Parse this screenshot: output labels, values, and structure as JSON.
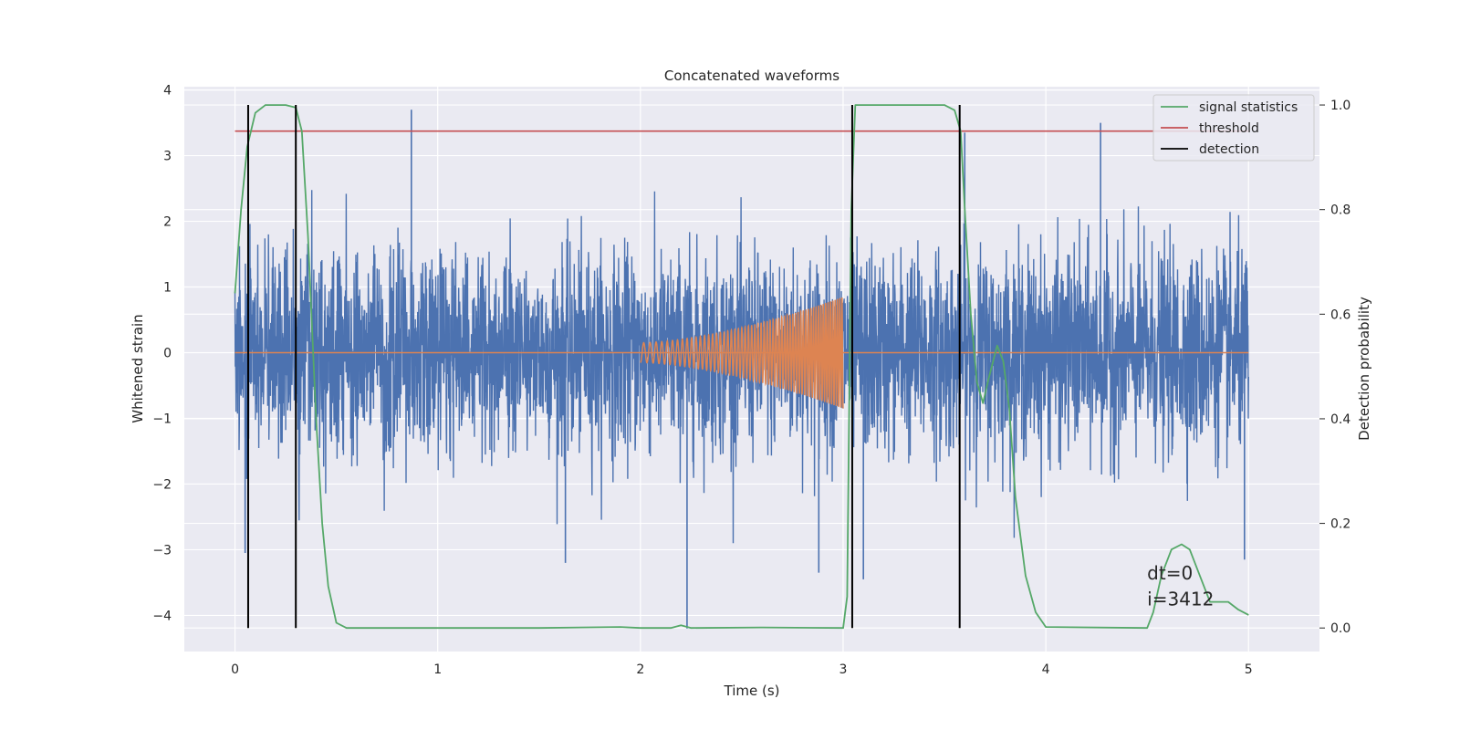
{
  "chart_data": {
    "type": "line",
    "title": "Concatenated waveforms",
    "xlabel": "Time (s)",
    "ylabel": "Whitened strain",
    "y2label": "Detection probability",
    "xlim": [
      -0.25,
      5.35
    ],
    "ylim": [
      -4.55,
      4.05
    ],
    "y2lim": [
      -0.045,
      1.035
    ],
    "xticks": [
      0,
      1,
      2,
      3,
      4,
      5
    ],
    "yticks": [
      -4,
      -3,
      -2,
      -1,
      0,
      1,
      2,
      3,
      4
    ],
    "y2ticks": [
      0.0,
      0.2,
      0.4,
      0.6,
      0.8,
      1.0
    ],
    "xtick_labels": [
      "0",
      "1",
      "2",
      "3",
      "4",
      "5"
    ],
    "ytick_labels": [
      "−4",
      "−3",
      "−2",
      "−1",
      "0",
      "1",
      "2",
      "3",
      "4"
    ],
    "y2tick_labels": [
      "0.0",
      "0.2",
      "0.4",
      "0.6",
      "0.8",
      "1.0"
    ],
    "grid": true,
    "legend_position": "top-right",
    "colors": {
      "noise": "#4c72b0",
      "chirp": "#dd8452",
      "signal_statistics": "#55a868",
      "threshold": "#c44e52",
      "detection": "#000000",
      "axes_bg": "#eaeaf2",
      "grid": "#ffffff"
    },
    "series": [
      {
        "name": "strain noise",
        "axis": "left",
        "description": "Gaussian-like whitened noise, 0 to 5 s, amplitude roughly ±1 with spikes",
        "x_range": [
          0,
          5
        ],
        "typical_amplitude": 1.0,
        "spikes": [
          [
            0.87,
            3.7
          ],
          [
            0.05,
            -3.05
          ],
          [
            2.23,
            -4.2
          ],
          [
            1.63,
            -3.2
          ],
          [
            3.6,
            3.35
          ],
          [
            4.27,
            3.5
          ],
          [
            2.88,
            -3.35
          ],
          [
            3.1,
            -3.45
          ],
          [
            4.98,
            -3.15
          ]
        ]
      },
      {
        "name": "injected chirp",
        "axis": "left",
        "x_range": [
          2,
          3
        ],
        "amplitude_start": 0.15,
        "amplitude_end": 0.85,
        "freq_start_hz": 30,
        "freq_end_hz": 90
      },
      {
        "name": "signal statistics",
        "axis": "right",
        "points": [
          [
            0,
            0.64
          ],
          [
            0.03,
            0.8
          ],
          [
            0.06,
            0.92
          ],
          [
            0.1,
            0.985
          ],
          [
            0.15,
            1.0
          ],
          [
            0.25,
            1.0
          ],
          [
            0.3,
            0.995
          ],
          [
            0.33,
            0.95
          ],
          [
            0.36,
            0.75
          ],
          [
            0.4,
            0.4
          ],
          [
            0.43,
            0.2
          ],
          [
            0.46,
            0.08
          ],
          [
            0.5,
            0.01
          ],
          [
            0.55,
            0.0
          ],
          [
            1.0,
            0.0
          ],
          [
            1.5,
            0.0
          ],
          [
            1.9,
            0.002
          ],
          [
            2.0,
            0.0
          ],
          [
            2.15,
            0.0
          ],
          [
            2.2,
            0.005
          ],
          [
            2.25,
            0.0
          ],
          [
            2.6,
            0.001
          ],
          [
            3.0,
            0.0
          ],
          [
            3.02,
            0.06
          ],
          [
            3.04,
            0.8
          ],
          [
            3.06,
            1.0
          ],
          [
            3.5,
            1.0
          ],
          [
            3.55,
            0.99
          ],
          [
            3.58,
            0.95
          ],
          [
            3.6,
            0.8
          ],
          [
            3.63,
            0.6
          ],
          [
            3.66,
            0.47
          ],
          [
            3.69,
            0.43
          ],
          [
            3.72,
            0.48
          ],
          [
            3.76,
            0.54
          ],
          [
            3.79,
            0.51
          ],
          [
            3.82,
            0.42
          ],
          [
            3.85,
            0.25
          ],
          [
            3.9,
            0.1
          ],
          [
            3.95,
            0.03
          ],
          [
            4.0,
            0.002
          ],
          [
            4.5,
            0.0
          ],
          [
            4.53,
            0.03
          ],
          [
            4.57,
            0.1
          ],
          [
            4.62,
            0.15
          ],
          [
            4.67,
            0.16
          ],
          [
            4.71,
            0.15
          ],
          [
            4.76,
            0.1
          ],
          [
            4.81,
            0.05
          ],
          [
            4.86,
            0.05
          ],
          [
            4.9,
            0.05
          ],
          [
            4.95,
            0.035
          ],
          [
            5.0,
            0.025
          ]
        ]
      },
      {
        "name": "threshold",
        "axis": "right",
        "x_range": [
          0,
          5
        ],
        "value": 0.95
      },
      {
        "name": "detection",
        "axis": "right",
        "x_positions": [
          0.065,
          0.3,
          3.045,
          3.575
        ],
        "y_range": [
          0.0,
          1.0
        ]
      }
    ],
    "legend": [
      {
        "label": "signal statistics",
        "color": "#55a868"
      },
      {
        "label": "threshold",
        "color": "#c44e52"
      },
      {
        "label": "detection",
        "color": "#000000"
      }
    ],
    "annotations": [
      {
        "text": "dt=0",
        "x": 4.5,
        "y": -3.45
      },
      {
        "text": "i=3412",
        "x": 4.5,
        "y": -3.85
      }
    ]
  }
}
